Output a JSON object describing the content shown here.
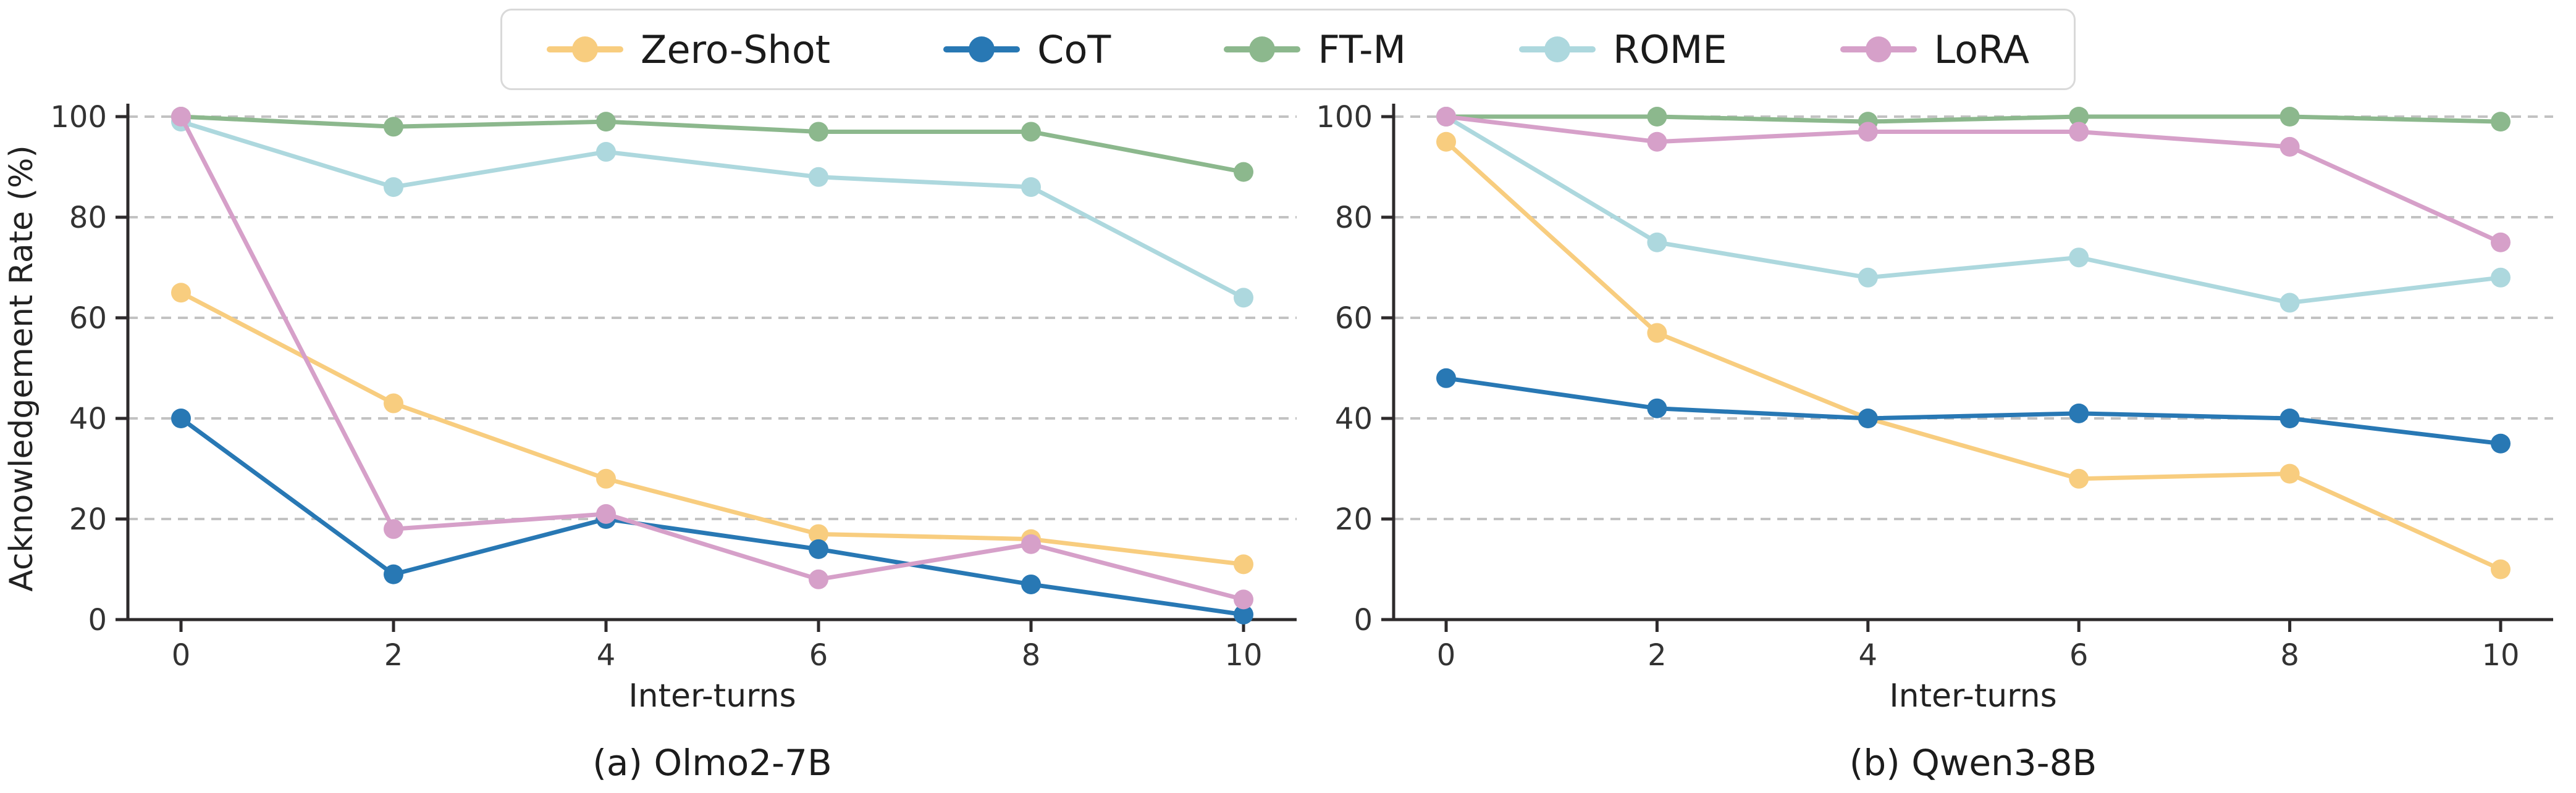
{
  "figure": {
    "ylabel": "Acknowledgement Rate (%)",
    "xlabel": "Inter-turns"
  },
  "colors": {
    "Zero-Shot": "#F8CD7F",
    "CoT": "#2878B4",
    "FT-M": "#8CB88D",
    "ROME": "#ADD8DE",
    "LoRA": "#D6A0C9"
  },
  "legend": {
    "items": [
      "Zero-Shot",
      "CoT",
      "FT-M",
      "ROME",
      "LoRA"
    ]
  },
  "chart_data": [
    {
      "type": "line",
      "title": "(a) Olmo2-7B",
      "xlabel": "Inter-turns",
      "ylabel": "Acknowledgement Rate (%)",
      "x": [
        0,
        2,
        4,
        6,
        8,
        10
      ],
      "xtick_labels": [
        "0",
        "2",
        "4",
        "6",
        "8",
        "10"
      ],
      "yticks": [
        0,
        20,
        40,
        60,
        80,
        100
      ],
      "ylim": [
        0,
        105
      ],
      "grid": "horizontal-dashed",
      "legend_position": "upper-center-outside-shared",
      "series": [
        {
          "name": "Zero-Shot",
          "values": [
            65,
            43,
            28,
            17,
            16,
            11
          ]
        },
        {
          "name": "CoT",
          "values": [
            40,
            9,
            20,
            14,
            7,
            1
          ]
        },
        {
          "name": "FT-M",
          "values": [
            100,
            98,
            99,
            97,
            97,
            89
          ]
        },
        {
          "name": "ROME",
          "values": [
            99,
            86,
            93,
            88,
            86,
            64
          ]
        },
        {
          "name": "LoRA",
          "values": [
            100,
            18,
            21,
            8,
            15,
            4
          ]
        }
      ]
    },
    {
      "type": "line",
      "title": "(b) Qwen3-8B",
      "xlabel": "Inter-turns",
      "ylabel": "",
      "x": [
        0,
        2,
        4,
        6,
        8,
        10
      ],
      "xtick_labels": [
        "0",
        "2",
        "4",
        "6",
        "8",
        "10"
      ],
      "yticks": [
        0,
        20,
        40,
        60,
        80,
        100
      ],
      "ylim": [
        0,
        105
      ],
      "grid": "horizontal-dashed",
      "legend_position": "upper-center-outside-shared",
      "series": [
        {
          "name": "Zero-Shot",
          "values": [
            95,
            57,
            40,
            28,
            29,
            10
          ]
        },
        {
          "name": "CoT",
          "values": [
            48,
            42,
            40,
            41,
            40,
            35
          ]
        },
        {
          "name": "FT-M",
          "values": [
            100,
            100,
            99,
            100,
            100,
            99
          ]
        },
        {
          "name": "ROME",
          "values": [
            100,
            75,
            68,
            72,
            63,
            68
          ]
        },
        {
          "name": "LoRA",
          "values": [
            100,
            95,
            97,
            97,
            94,
            75
          ]
        }
      ]
    }
  ]
}
